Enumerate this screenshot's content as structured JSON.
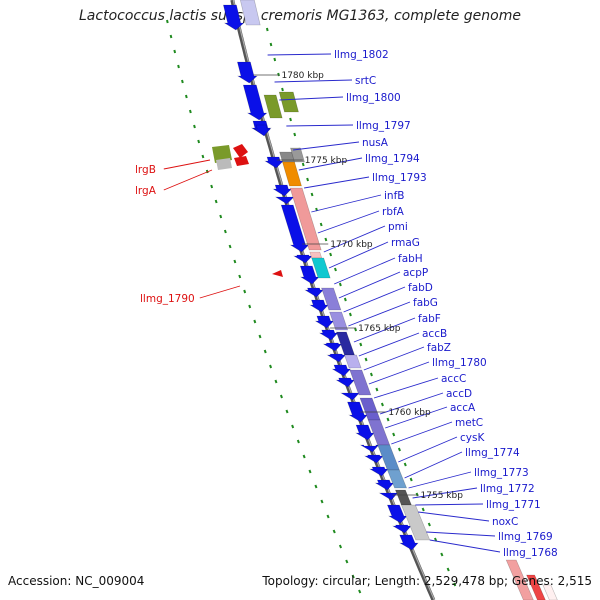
{
  "title": "Lactococcus lactis subsp. cremoris MG1363, complete genome",
  "accession": "Accession: NC_009004",
  "topology": "Topology: circular; Length: 2,529,478 bp; Genes: 2,515",
  "colors": {
    "backbone": "#7a7a7a",
    "forward_gene": "#0a10e8",
    "label_blue": "#1a1acc",
    "label_red": "#dd1111",
    "track_green": "#1f8a1f"
  },
  "kbp_ticks": [
    "1780 kbp",
    "1775 kbp",
    "1770 kbp",
    "1765 kbp",
    "1760 kbp",
    "1755 kbp"
  ],
  "right_labels": [
    "llmg_1802",
    "srtC",
    "llmg_1800",
    "llmg_1797",
    "nusA",
    "llmg_1794",
    "llmg_1793",
    "infB",
    "rbfA",
    "pmi",
    "rmaG",
    "fabH",
    "acpP",
    "fabD",
    "fabG",
    "fabF",
    "accB",
    "fabZ",
    "llmg_1780",
    "accC",
    "accD",
    "accA",
    "metC",
    "cysK",
    "llmg_1774",
    "llmg_1773",
    "llmg_1772",
    "llmg_1771",
    "noxC",
    "llmg_1769",
    "llmg_1768"
  ],
  "left_labels": [
    "lrgB",
    "lrgA",
    "llmg_1790"
  ]
}
